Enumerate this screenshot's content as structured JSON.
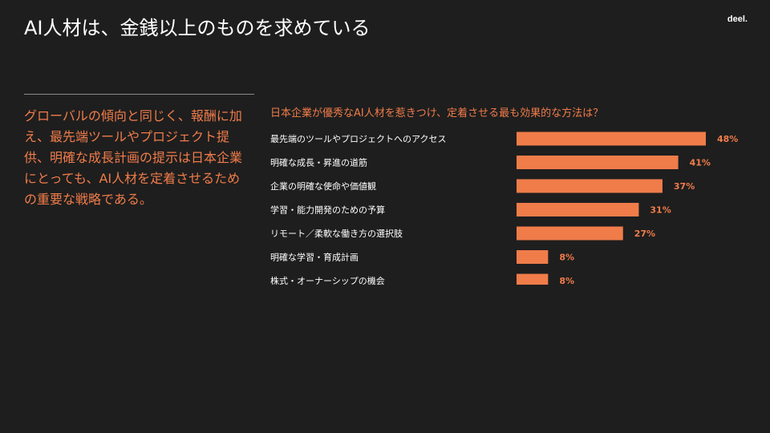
{
  "header": {
    "title": "AI人材は、金銭以上のものを求めている",
    "logo": "deel."
  },
  "sidebar": {
    "text": "グローバルの傾向と同じく、報酬に加え、最先端ツールやプロジェクト提供、明確な成長計画の提示は日本企業にとっても、AI人材を定着させるための重要な戦略である。"
  },
  "colors": {
    "background": "#1e1e1e",
    "accent": "#f07c4a",
    "text": "#ffffff"
  },
  "chart_data": {
    "type": "bar",
    "orientation": "horizontal",
    "title": "日本企業が優秀なAI人材を惹きつけ、定着させる最も効果的な方法は？",
    "categories": [
      "最先端のツールやプロジェクトへのアクセス",
      "明確な成長・昇進の道筋",
      "企業の明確な使命や価値観",
      "学習・能力開発のための予算",
      "リモート／柔軟な働き方の選択肢",
      "明確な学習・育成計画",
      "株式・オーナーシップの機会"
    ],
    "values": [
      48,
      41,
      37,
      31,
      27,
      8,
      8
    ],
    "value_labels": [
      "48%",
      "41%",
      "37%",
      "31%",
      "27%",
      "8%",
      "8%"
    ],
    "unit": "%",
    "xlim": [
      0,
      48
    ],
    "grid": false,
    "legend": "none",
    "bar_color": "#f07c4a"
  }
}
